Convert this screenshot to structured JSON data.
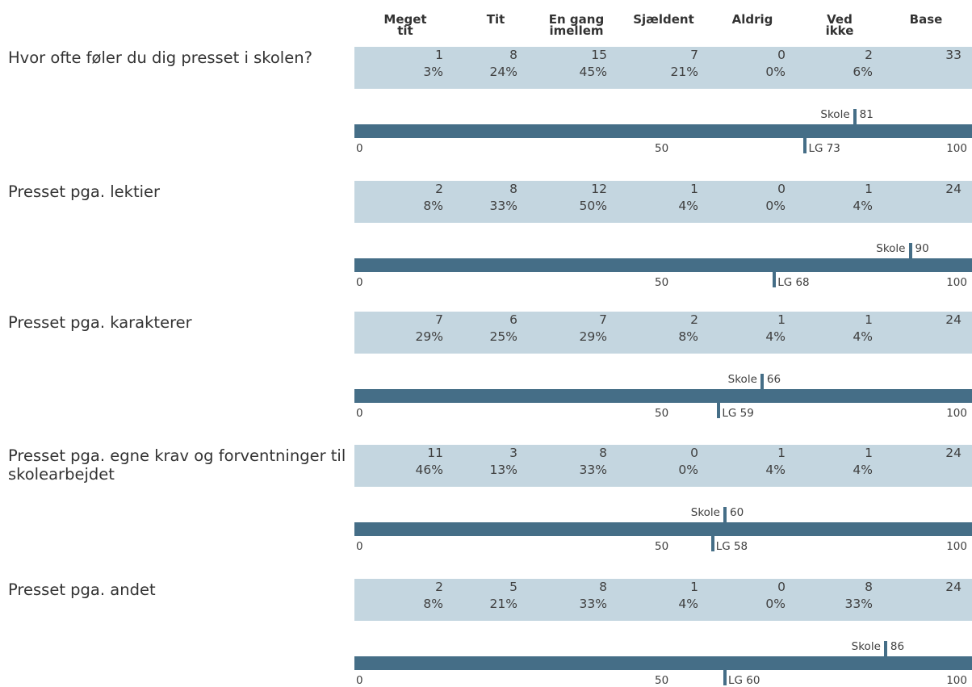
{
  "chart_data": {
    "type": "table",
    "columns": [
      "Meget\ntit",
      "Tit",
      "En gang\nimellem",
      "Sjældent",
      "Aldrig",
      "Ved\nikke",
      "Base"
    ],
    "scale": {
      "min_label": "0",
      "mid_label": "50",
      "max_label": "100",
      "min": 0,
      "max": 100
    },
    "marker_labels": {
      "school": "Skole",
      "lg": "LG"
    },
    "rows": [
      {
        "question": "Hvor ofte føler du dig presset i skolen?",
        "counts": [
          "1",
          "8",
          "15",
          "7",
          "0",
          "2",
          "33"
        ],
        "percents": [
          "3%",
          "24%",
          "45%",
          "21%",
          "0%",
          "6%"
        ],
        "school": 81,
        "lg": 73
      },
      {
        "question": "Presset pga. lektier",
        "counts": [
          "2",
          "8",
          "12",
          "1",
          "0",
          "1",
          "24"
        ],
        "percents": [
          "8%",
          "33%",
          "50%",
          "4%",
          "0%",
          "4%"
        ],
        "school": 90,
        "lg": 68
      },
      {
        "question": "Presset pga. karakterer",
        "counts": [
          "7",
          "6",
          "7",
          "2",
          "1",
          "1",
          "24"
        ],
        "percents": [
          "29%",
          "25%",
          "29%",
          "8%",
          "4%",
          "4%"
        ],
        "school": 66,
        "lg": 59
      },
      {
        "question": "Presset pga. egne krav og forventninger til skolearbejdet",
        "counts": [
          "11",
          "3",
          "8",
          "0",
          "1",
          "1",
          "24"
        ],
        "percents": [
          "46%",
          "13%",
          "33%",
          "0%",
          "4%",
          "4%"
        ],
        "school": 60,
        "lg": 58
      },
      {
        "question": "Presset pga. andet",
        "counts": [
          "2",
          "5",
          "8",
          "1",
          "0",
          "8",
          "24"
        ],
        "percents": [
          "8%",
          "21%",
          "33%",
          "4%",
          "0%",
          "33%"
        ],
        "school": 86,
        "lg": 60
      }
    ]
  },
  "colors": {
    "band": "#c4d6e0",
    "bar": "#456e87"
  }
}
